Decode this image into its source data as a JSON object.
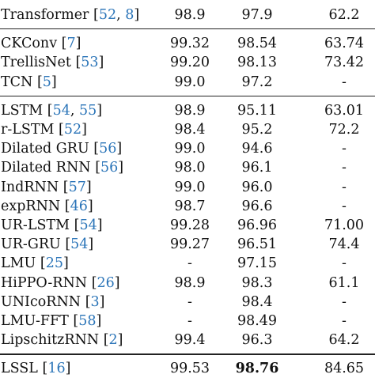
{
  "table": {
    "groups": [
      {
        "rows": [
          {
            "model": "Transformer",
            "cites": [
              "52",
              "8"
            ],
            "v1": "98.9",
            "v2": "97.9",
            "v3": "62.2"
          }
        ]
      },
      {
        "rows": [
          {
            "model": "CKConv",
            "cites": [
              "7"
            ],
            "v1": "99.32",
            "v2": "98.54",
            "v3": "63.74"
          },
          {
            "model": "TrellisNet",
            "cites": [
              "53"
            ],
            "v1": "99.20",
            "v2": "98.13",
            "v3": "73.42"
          },
          {
            "model": "TCN",
            "cites": [
              "5"
            ],
            "v1": "99.0",
            "v2": "97.2",
            "v3": "-"
          }
        ]
      },
      {
        "rows": [
          {
            "model": "LSTM",
            "cites": [
              "54",
              "55"
            ],
            "v1": "98.9",
            "v2": "95.11",
            "v3": "63.01"
          },
          {
            "model": "r-LSTM",
            "cites": [
              "52"
            ],
            "v1": "98.4",
            "v2": "95.2",
            "v3": "72.2"
          },
          {
            "model": "Dilated GRU",
            "cites": [
              "56"
            ],
            "v1": "99.0",
            "v2": "94.6",
            "v3": "-"
          },
          {
            "model": "Dilated RNN",
            "cites": [
              "56"
            ],
            "v1": "98.0",
            "v2": "96.1",
            "v3": "-"
          },
          {
            "model": "IndRNN",
            "cites": [
              "57"
            ],
            "v1": "99.0",
            "v2": "96.0",
            "v3": "-"
          },
          {
            "model": "expRNN",
            "cites": [
              "46"
            ],
            "v1": "98.7",
            "v2": "96.6",
            "v3": "-"
          },
          {
            "model": "UR-LSTM",
            "cites": [
              "54"
            ],
            "v1": "99.28",
            "v2": "96.96",
            "v3": "71.00"
          },
          {
            "model": "UR-GRU",
            "cites": [
              "54"
            ],
            "v1": "99.27",
            "v2": "96.51",
            "v3": "74.4"
          },
          {
            "model": "LMU",
            "cites": [
              "25"
            ],
            "v1": "-",
            "v2": "97.15",
            "v3": "-"
          },
          {
            "model": "HiPPO-RNN",
            "cites": [
              "26"
            ],
            "v1": "98.9",
            "v2": "98.3",
            "v3": "61.1"
          },
          {
            "model": "UNIcoRNN",
            "cites": [
              "3"
            ],
            "v1": "-",
            "v2": "98.4",
            "v3": "-"
          },
          {
            "model": "LMU-FFT",
            "cites": [
              "58"
            ],
            "v1": "-",
            "v2": "98.49",
            "v3": "-"
          },
          {
            "model": "LipschitzRNN",
            "cites": [
              "2"
            ],
            "v1": "99.4",
            "v2": "96.3",
            "v3": "64.2"
          }
        ]
      },
      {
        "rows": [
          {
            "model": "LSSL",
            "cites": [
              "16"
            ],
            "v1": "99.53",
            "v2": "98.76",
            "v3": "84.65",
            "v2_bold": true
          }
        ]
      }
    ]
  }
}
